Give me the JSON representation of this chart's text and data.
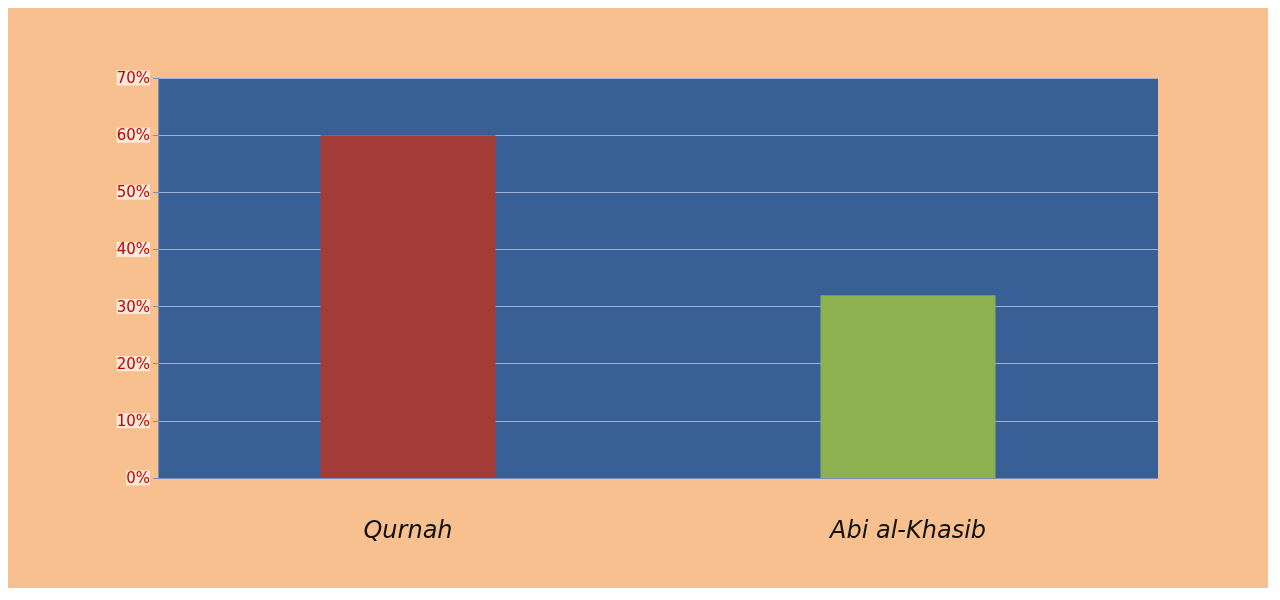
{
  "chart_data": {
    "type": "bar",
    "categories": [
      "Qurnah",
      "Abi al-Khasib"
    ],
    "values": [
      60,
      32
    ],
    "colors": [
      "#a33c37",
      "#8db050"
    ],
    "ylim": [
      0,
      70
    ],
    "yticks": [
      {
        "value": 0,
        "label": "0%"
      },
      {
        "value": 10,
        "label": "10%"
      },
      {
        "value": 20,
        "label": "20%"
      },
      {
        "value": 30,
        "label": "30%"
      },
      {
        "value": 40,
        "label": "40%"
      },
      {
        "value": 50,
        "label": "50%"
      },
      {
        "value": 60,
        "label": "60%"
      },
      {
        "value": 70,
        "label": "70%"
      }
    ],
    "grid": "y"
  }
}
